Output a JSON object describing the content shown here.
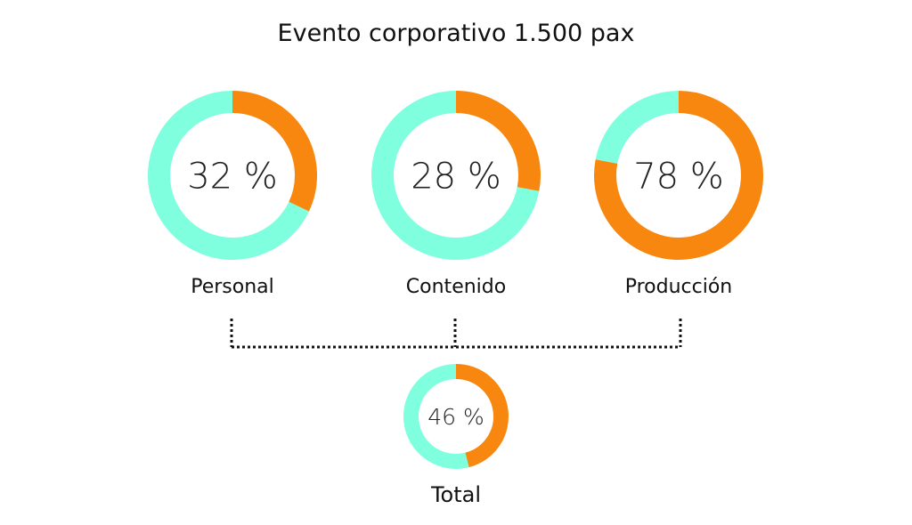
{
  "chart_data": {
    "type": "pie",
    "variant": "donut",
    "title": "Evento corporativo 1.500 pax",
    "colors": {
      "value": "#F7870F",
      "remainder": "#80FFDF"
    },
    "charts": [
      {
        "label": "Personal",
        "value": 32,
        "display": "32 %"
      },
      {
        "label": "Contenido",
        "value": 28,
        "display": "28 %"
      },
      {
        "label": "Producción",
        "value": 78,
        "display": "78 %"
      }
    ],
    "total": {
      "label": "Total",
      "value": 46,
      "display": "46 %"
    }
  }
}
